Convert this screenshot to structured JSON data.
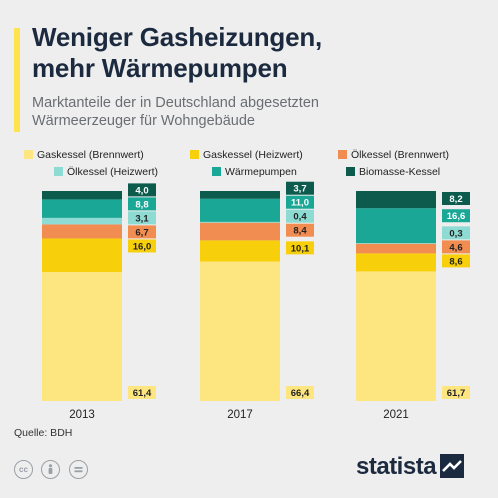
{
  "header": {
    "title_line1": "Weniger Gasheizungen,",
    "title_line2": "mehr Wärmepumpen",
    "subtitle_line1": "Marktanteile der in Deutschland abgesetzten",
    "subtitle_line2": "Wärmeerzeuger für Wohngebäude"
  },
  "footer": {
    "source": "Quelle: BDH",
    "brand": "statista",
    "license_icons": [
      "cc-icon",
      "person-icon",
      "equals-icon"
    ]
  },
  "colors": {
    "background": "#eeeeee",
    "accent": "#ffe34d",
    "title": "#1c2a3f"
  },
  "chart_data": {
    "type": "bar",
    "stacked": true,
    "categories": [
      "2013",
      "2017",
      "2021"
    ],
    "ylim": [
      0,
      100
    ],
    "series": [
      {
        "name": "Gaskessel (Brennwert)",
        "color": "#fde680",
        "label_bg": "#fde680",
        "values": [
          61.4,
          66.4,
          61.7
        ],
        "labels": [
          "61,4",
          "66,4",
          "61,7"
        ]
      },
      {
        "name": "Gaskessel (Heizwert)",
        "color": "#f7cf0b",
        "label_bg": "#f7cf0b",
        "values": [
          16.0,
          10.1,
          8.6
        ],
        "labels": [
          "16,0",
          "10,1",
          "8,6"
        ]
      },
      {
        "name": "Ölkessel (Brennwert)",
        "color": "#f28d52",
        "label_bg": "#f28d52",
        "values": [
          6.7,
          8.4,
          4.6
        ],
        "labels": [
          "6,7",
          "8,4",
          "4,6"
        ]
      },
      {
        "name": "Ölkessel (Heizwert)",
        "color": "#8edbd3",
        "label_bg": "#8edbd3",
        "values": [
          3.1,
          0.4,
          0.3
        ],
        "labels": [
          "3,1",
          "0,4",
          "0,3"
        ]
      },
      {
        "name": "Wärmepumpen",
        "color": "#1aa796",
        "label_bg": "#1aa796",
        "values": [
          8.8,
          11.0,
          16.6
        ],
        "labels": [
          "8,8",
          "11,0",
          "16,6"
        ]
      },
      {
        "name": "Biomasse-Kessel",
        "color": "#0c5b4d",
        "label_bg": "#0c5b4d",
        "values": [
          4.0,
          3.7,
          8.2
        ],
        "labels": [
          "4,0",
          "3,7",
          "8,2"
        ]
      }
    ]
  }
}
